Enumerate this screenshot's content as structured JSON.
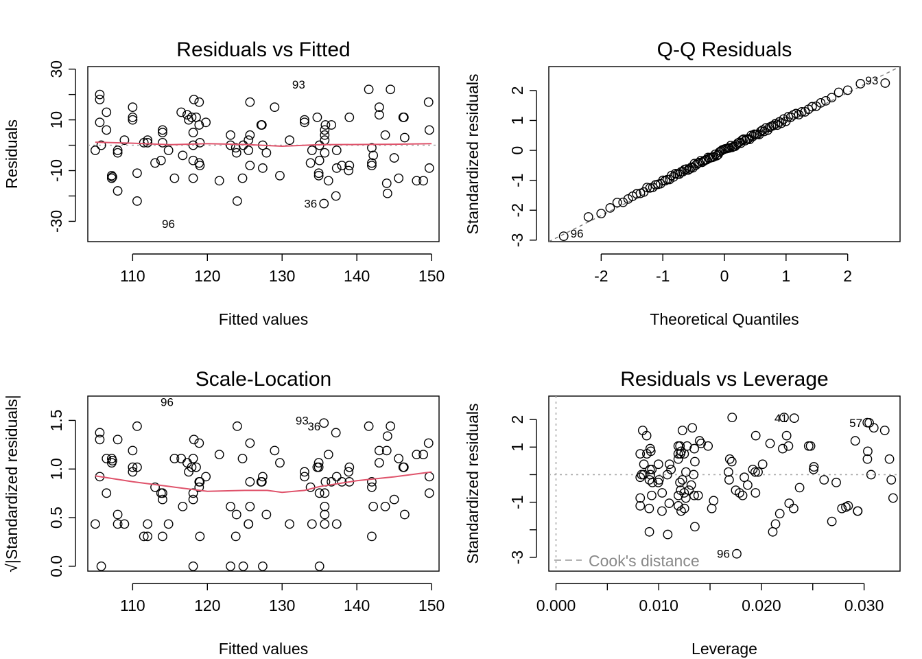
{
  "chart_data": [
    {
      "type": "scatter",
      "title": "Residuals vs Fitted",
      "xlabel": "Fitted values",
      "ylabel": "Residuals",
      "xlim": [
        104,
        151
      ],
      "ylim": [
        -38,
        31
      ],
      "xticks": [
        110,
        120,
        130,
        140,
        150
      ],
      "yticks": [
        -30,
        -10,
        10,
        30
      ],
      "hline": 0,
      "points": [
        [
          105.0,
          -2
        ],
        [
          105.6,
          20
        ],
        [
          105.6,
          18
        ],
        [
          105.6,
          9
        ],
        [
          105.8,
          0
        ],
        [
          106.5,
          13
        ],
        [
          106.5,
          6
        ],
        [
          107.2,
          -12
        ],
        [
          107.2,
          -13
        ],
        [
          107.3,
          -12.5
        ],
        [
          108,
          -2
        ],
        [
          108,
          -3
        ],
        [
          108,
          -18
        ],
        [
          108.9,
          2
        ],
        [
          110,
          15
        ],
        [
          110,
          11
        ],
        [
          110,
          10
        ],
        [
          110.6,
          -11
        ],
        [
          110.6,
          -22
        ],
        [
          111.5,
          1
        ],
        [
          112,
          2
        ],
        [
          112,
          1
        ],
        [
          113,
          -7
        ],
        [
          113.8,
          -6
        ],
        [
          114,
          6
        ],
        [
          114,
          1
        ],
        [
          114,
          5
        ],
        [
          114.8,
          -2
        ],
        [
          115.6,
          -13
        ],
        [
          116.5,
          13
        ],
        [
          116.7,
          -4
        ],
        [
          117.3,
          12
        ],
        [
          117.5,
          10
        ],
        [
          117.9,
          11
        ],
        [
          118.1,
          0
        ],
        [
          118.1,
          -6
        ],
        [
          118.1,
          -13
        ],
        [
          118.1,
          5
        ],
        [
          118.2,
          18
        ],
        [
          118.5,
          11
        ],
        [
          118.9,
          8
        ],
        [
          118.9,
          17
        ],
        [
          118.9,
          -7
        ],
        [
          119,
          1
        ],
        [
          119,
          -8
        ],
        [
          119.8,
          9
        ],
        [
          121.6,
          -14
        ],
        [
          123.1,
          4
        ],
        [
          123.1,
          0
        ],
        [
          123.8,
          -1
        ],
        [
          123.9,
          -3
        ],
        [
          124,
          -22
        ],
        [
          124.7,
          -13
        ],
        [
          124.8,
          0
        ],
        [
          125.5,
          -2
        ],
        [
          125.5,
          2
        ],
        [
          125.7,
          4
        ],
        [
          125.7,
          17
        ],
        [
          125.7,
          -8
        ],
        [
          127.2,
          8
        ],
        [
          127.3,
          8
        ],
        [
          127.4,
          -9
        ],
        [
          127.4,
          0
        ],
        [
          127.9,
          -3
        ],
        [
          129,
          15
        ],
        [
          129.7,
          -12
        ],
        [
          131,
          2
        ],
        [
          133,
          10
        ],
        [
          133,
          9
        ],
        [
          133.8,
          -7
        ],
        [
          134,
          -2
        ],
        [
          134.7,
          11
        ],
        [
          134.9,
          -12
        ],
        [
          134.9,
          -11
        ],
        [
          135,
          -6
        ],
        [
          135,
          0
        ],
        [
          135.6,
          -23
        ],
        [
          135.7,
          6
        ],
        [
          135.7,
          4
        ],
        [
          135.7,
          -3
        ],
        [
          135.7,
          2
        ],
        [
          135.8,
          8
        ],
        [
          136.2,
          -14
        ],
        [
          136.6,
          8
        ],
        [
          137.2,
          -20
        ],
        [
          137.3,
          -2
        ],
        [
          137.3,
          -9
        ],
        [
          138,
          -8
        ],
        [
          138.9,
          -10
        ],
        [
          139,
          11
        ],
        [
          139,
          -8
        ],
        [
          141.6,
          22
        ],
        [
          142,
          -1
        ],
        [
          142,
          -7
        ],
        [
          142,
          -8
        ],
        [
          142.2,
          -4
        ],
        [
          143,
          15
        ],
        [
          143,
          12
        ],
        [
          143.8,
          4
        ],
        [
          144,
          -15
        ],
        [
          144.1,
          -19
        ],
        [
          144.5,
          22
        ],
        [
          145,
          -5
        ],
        [
          145.6,
          -13
        ],
        [
          146.2,
          11
        ],
        [
          146.3,
          11
        ],
        [
          146.4,
          3
        ],
        [
          148,
          -14
        ],
        [
          148.9,
          -14
        ],
        [
          149.6,
          17
        ],
        [
          149.7,
          6
        ],
        [
          149.7,
          -9
        ]
      ],
      "labeled": [
        {
          "label": "93",
          "x": 134.0,
          "y": 24
        },
        {
          "label": "36",
          "x": 135.6,
          "y": -23
        },
        {
          "label": "96",
          "x": 113,
          "y": -31
        }
      ],
      "smooth": [
        [
          105,
          1.2
        ],
        [
          110,
          0.8
        ],
        [
          115,
          0.2
        ],
        [
          120,
          0.6
        ],
        [
          125,
          0.3
        ],
        [
          130,
          -0.4
        ],
        [
          135,
          0.2
        ],
        [
          140,
          0.3
        ],
        [
          145,
          0.4
        ],
        [
          150,
          0.6
        ]
      ]
    },
    {
      "type": "scatter",
      "title": "Q-Q Residuals",
      "xlabel": "Theoretical Quantiles",
      "ylabel": "Standardized residuals",
      "xlim": [
        -2.85,
        2.85
      ],
      "ylim": [
        -3.05,
        2.8
      ],
      "xticks": [
        -2,
        -1,
        0,
        1,
        2
      ],
      "yticks": [
        -3,
        -2,
        -1,
        0,
        1,
        2
      ],
      "refline": [
        [
          -2.85,
          -3.05
        ],
        [
          2.85,
          2.8
        ]
      ],
      "n": 110,
      "labeled": [
        {
          "label": "93",
          "index": 109
        },
        {
          "label": "96",
          "index": 0
        }
      ]
    },
    {
      "type": "scatter",
      "title": "Scale-Location",
      "xlabel": "Fitted values",
      "ylabel": "√|Standardized residuals|",
      "xlim": [
        104,
        151
      ],
      "ylim": [
        -0.05,
        1.75
      ],
      "xticks": [
        110,
        120,
        130,
        140,
        150
      ],
      "yticks": [
        "0.0",
        "0.5",
        "1.0",
        "1.5"
      ],
      "labeled": [
        {
          "label": "96",
          "x": 113,
          "y": 1.69
        },
        {
          "label": "93",
          "x": 134.0,
          "y": 1.5
        },
        {
          "label": "36",
          "x": 135.6,
          "y": 1.44
        }
      ],
      "smooth": [
        [
          105,
          0.93
        ],
        [
          110,
          0.87
        ],
        [
          115,
          0.82
        ],
        [
          120,
          0.77
        ],
        [
          125,
          0.78
        ],
        [
          128,
          0.78
        ],
        [
          130,
          0.76
        ],
        [
          133,
          0.78
        ],
        [
          135,
          0.82
        ],
        [
          140,
          0.88
        ],
        [
          145,
          0.92
        ],
        [
          150,
          0.97
        ]
      ]
    },
    {
      "type": "scatter",
      "title": "Residuals vs Leverage",
      "xlabel": "Leverage",
      "ylabel": "Standardized residuals",
      "xlim": [
        -0.0007,
        0.0335
      ],
      "ylim": [
        -3.5,
        2.85
      ],
      "xticks": [
        "0.000",
        "0.010",
        "0.020",
        "0.030"
      ],
      "yticks": [
        -3,
        -1,
        1,
        2
      ],
      "legend": "Cook's distance",
      "labeled": [
        {
          "label": "41",
          "x": 0.0232,
          "y": 2.05
        },
        {
          "label": "57",
          "x": 0.0305,
          "y": 1.88
        },
        {
          "label": "96",
          "x": 0.0176,
          "y": -2.87
        }
      ]
    }
  ]
}
